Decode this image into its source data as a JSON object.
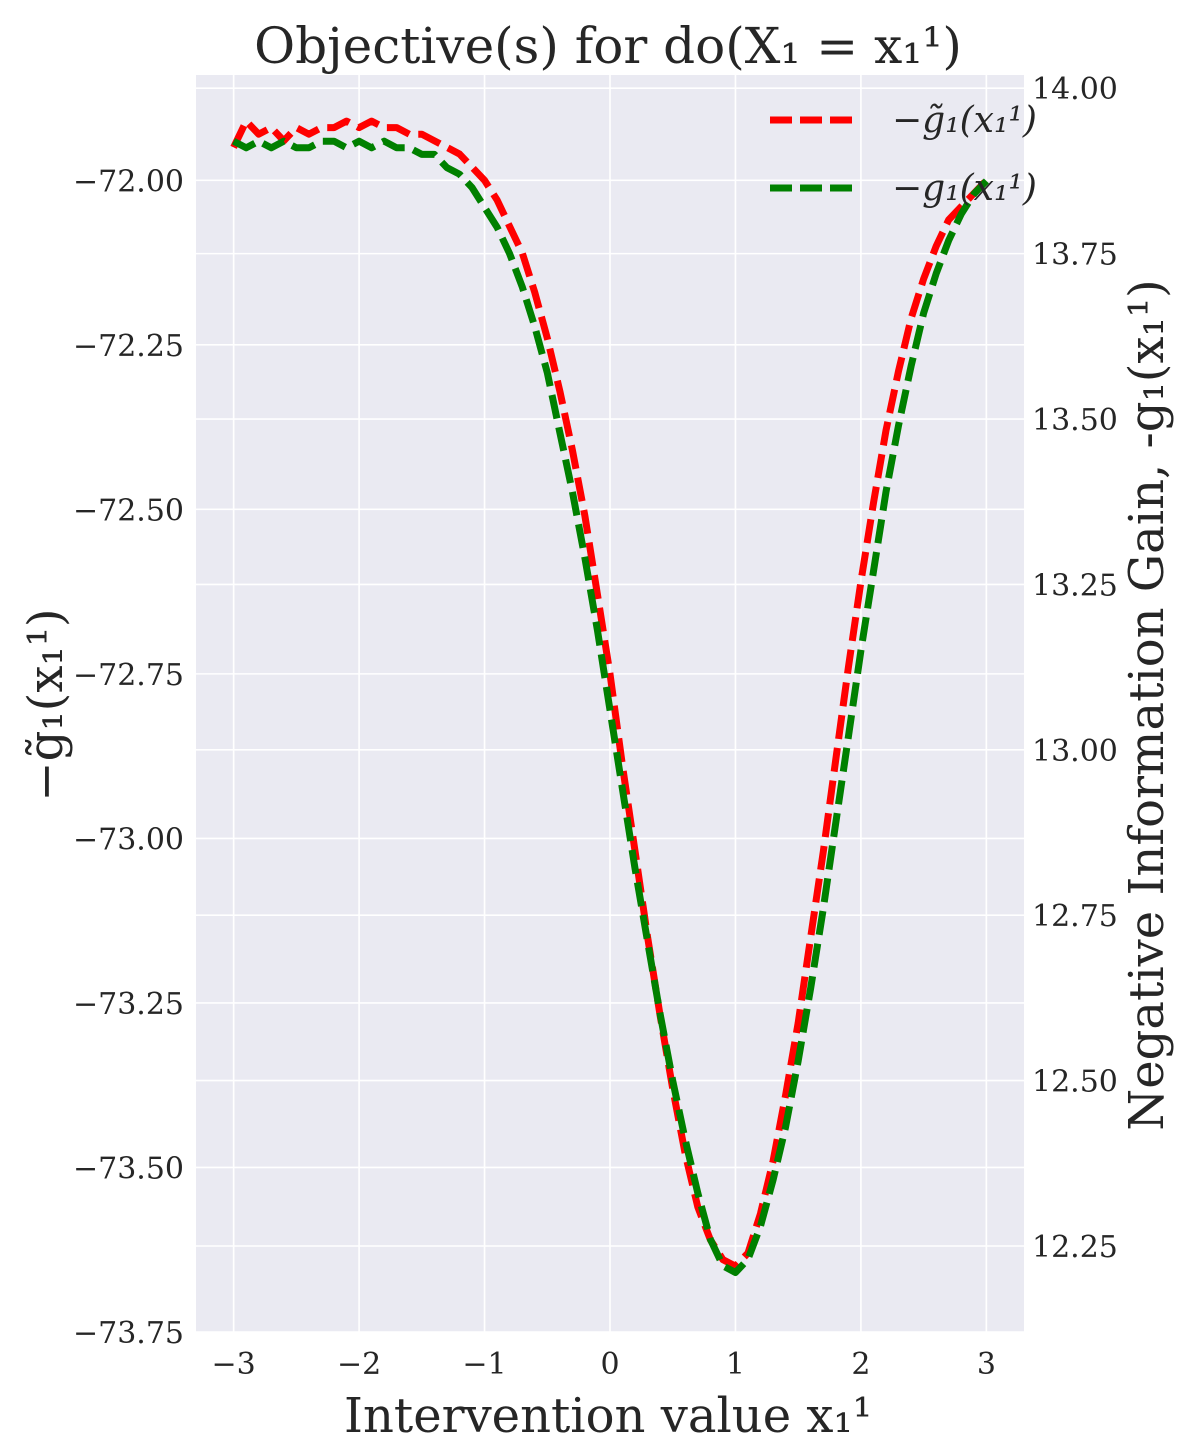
{
  "chart_data": {
    "type": "line",
    "title": "Objective(s) for do(X₁ = x₁¹)",
    "xlabel": "Intervention value x₁¹",
    "ylabel_left": "−g̃₁(x₁¹)",
    "ylabel_right": "Negative Information Gain, -g₁(x₁¹)",
    "xlim": [
      -3.3,
      3.3
    ],
    "ylim_left": [
      -73.75,
      -71.84
    ],
    "ylim_right": [
      12.12,
      14.02
    ],
    "x_ticks": [
      "−3",
      "−2",
      "−1",
      "0",
      "1",
      "2",
      "3"
    ],
    "y_ticks_left": [
      "−72.00",
      "−72.25",
      "−72.50",
      "−72.75",
      "−73.00",
      "−73.25",
      "−73.50",
      "−73.75"
    ],
    "y_ticks_right": [
      "14.00",
      "13.75",
      "13.50",
      "13.25",
      "13.00",
      "12.75",
      "12.50",
      "12.25"
    ],
    "legend_position": "top-right",
    "grid": true,
    "background": "#eaeaf2",
    "series": [
      {
        "name": "−g̃₁(x₁¹)",
        "axis": "left",
        "color": "#ff0000",
        "style": "dashed",
        "x": [
          -3.0,
          -2.9,
          -2.8,
          -2.7,
          -2.6,
          -2.5,
          -2.4,
          -2.3,
          -2.2,
          -2.1,
          -2.0,
          -1.9,
          -1.8,
          -1.7,
          -1.6,
          -1.5,
          -1.4,
          -1.3,
          -1.2,
          -1.1,
          -1.0,
          -0.9,
          -0.8,
          -0.7,
          -0.6,
          -0.5,
          -0.4,
          -0.3,
          -0.2,
          -0.1,
          0.0,
          0.1,
          0.2,
          0.3,
          0.4,
          0.5,
          0.6,
          0.7,
          0.8,
          0.9,
          1.0,
          1.1,
          1.2,
          1.3,
          1.4,
          1.5,
          1.6,
          1.7,
          1.8,
          1.9,
          2.0,
          2.1,
          2.2,
          2.3,
          2.4,
          2.5,
          2.6,
          2.7,
          2.8,
          2.9,
          3.0
        ],
        "y": [
          -71.95,
          -71.91,
          -71.93,
          -71.92,
          -71.94,
          -71.92,
          -71.93,
          -71.92,
          -71.92,
          -71.91,
          -71.92,
          -71.91,
          -71.92,
          -71.92,
          -71.93,
          -71.93,
          -71.94,
          -71.95,
          -71.96,
          -71.98,
          -72.0,
          -72.03,
          -72.07,
          -72.11,
          -72.17,
          -72.24,
          -72.32,
          -72.41,
          -72.51,
          -72.63,
          -72.75,
          -72.89,
          -73.02,
          -73.15,
          -73.27,
          -73.38,
          -73.48,
          -73.56,
          -73.61,
          -73.64,
          -73.65,
          -73.63,
          -73.57,
          -73.49,
          -73.39,
          -73.28,
          -73.15,
          -73.02,
          -72.88,
          -72.74,
          -72.61,
          -72.49,
          -72.38,
          -72.29,
          -72.21,
          -72.15,
          -72.1,
          -72.06,
          -72.04,
          -72.02,
          -72.0
        ]
      },
      {
        "name": "−g₁(x₁¹)",
        "axis": "right",
        "color": "#008000",
        "style": "dashed",
        "x": [
          -3.0,
          -2.9,
          -2.8,
          -2.7,
          -2.6,
          -2.5,
          -2.4,
          -2.3,
          -2.2,
          -2.1,
          -2.0,
          -1.9,
          -1.8,
          -1.7,
          -1.6,
          -1.5,
          -1.4,
          -1.3,
          -1.2,
          -1.1,
          -1.0,
          -0.9,
          -0.8,
          -0.7,
          -0.6,
          -0.5,
          -0.4,
          -0.3,
          -0.2,
          -0.1,
          0.0,
          0.1,
          0.2,
          0.3,
          0.4,
          0.5,
          0.6,
          0.7,
          0.8,
          0.9,
          1.0,
          1.1,
          1.2,
          1.3,
          1.4,
          1.5,
          1.6,
          1.7,
          1.8,
          1.9,
          2.0,
          2.1,
          2.2,
          2.3,
          2.4,
          2.5,
          2.6,
          2.7,
          2.8,
          2.9,
          3.0
        ],
        "y": [
          13.92,
          13.91,
          13.92,
          13.91,
          13.92,
          13.91,
          13.91,
          13.92,
          13.92,
          13.91,
          13.92,
          13.91,
          13.92,
          13.91,
          13.91,
          13.9,
          13.9,
          13.88,
          13.87,
          13.85,
          13.82,
          13.79,
          13.75,
          13.7,
          13.64,
          13.57,
          13.48,
          13.39,
          13.29,
          13.18,
          13.06,
          12.94,
          12.82,
          12.71,
          12.6,
          12.5,
          12.41,
          12.33,
          12.26,
          12.22,
          12.21,
          12.23,
          12.28,
          12.35,
          12.43,
          12.53,
          12.64,
          12.76,
          12.89,
          13.02,
          13.15,
          13.27,
          13.39,
          13.49,
          13.58,
          13.66,
          13.72,
          13.77,
          13.81,
          13.84,
          13.86
        ]
      }
    ]
  }
}
